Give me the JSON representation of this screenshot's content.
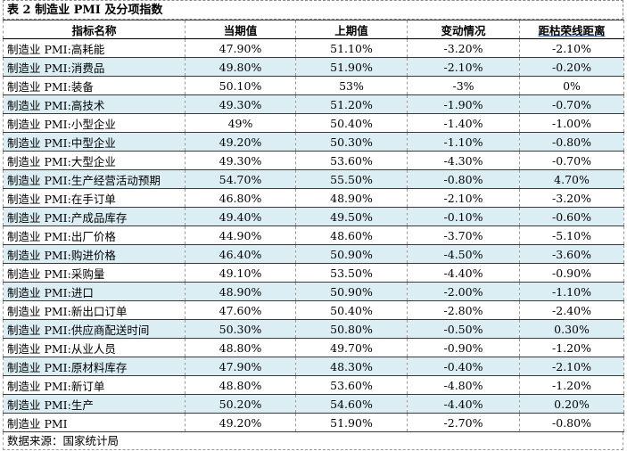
{
  "table": {
    "title": "表 2 制造业 PMI 及分项指数",
    "headers": [
      "指标名称",
      "当期值",
      "上期值",
      "变动情况",
      "距枯荣线距离"
    ],
    "rows": [
      [
        "制造业 PMI:高耗能",
        "47.90%",
        "51.10%",
        "-3.20%",
        "-2.10%"
      ],
      [
        "制造业 PMI:消费品",
        "49.80%",
        "51.90%",
        "-2.10%",
        "-0.20%"
      ],
      [
        "制造业 PMI:装备",
        "50.10%",
        "53%",
        "-3%",
        "0%"
      ],
      [
        "制造业 PMI:高技术",
        "49.30%",
        "51.20%",
        "-1.90%",
        "-0.70%"
      ],
      [
        "制造业 PMI:小型企业",
        "49%",
        "50.40%",
        "-1.40%",
        "-1.00%"
      ],
      [
        "制造业 PMI:中型企业",
        "49.20%",
        "50.30%",
        "-1.10%",
        "-0.80%"
      ],
      [
        "制造业 PMI:大型企业",
        "49.30%",
        "53.60%",
        "-4.30%",
        "-0.70%"
      ],
      [
        "制造业 PMI:生产经营活动预期",
        "54.70%",
        "55.50%",
        "-0.80%",
        "4.70%"
      ],
      [
        "制造业 PMI:在手订单",
        "46.80%",
        "48.90%",
        "-2.10%",
        "-3.20%"
      ],
      [
        "制造业 PMI:产成品库存",
        "49.40%",
        "49.50%",
        "-0.10%",
        "-0.60%"
      ],
      [
        "制造业 PMI:出厂价格",
        "44.90%",
        "48.60%",
        "-3.70%",
        "-5.10%"
      ],
      [
        "制造业 PMI:购进价格",
        "46.40%",
        "50.90%",
        "-4.50%",
        "-3.60%"
      ],
      [
        "制造业 PMI:采购量",
        "49.10%",
        "53.50%",
        "-4.40%",
        "-0.90%"
      ],
      [
        "制造业 PMI:进口",
        "48.90%",
        "50.90%",
        "-2.00%",
        "-1.10%"
      ],
      [
        "制造业 PMI:新出口订单",
        "47.60%",
        "50.40%",
        "-2.80%",
        "-2.40%"
      ],
      [
        "制造业 PMI:供应商配送时间",
        "50.30%",
        "50.80%",
        "-0.50%",
        "0.30%"
      ],
      [
        "制造业 PMI:从业人员",
        "48.80%",
        "49.70%",
        "-0.90%",
        "-1.20%"
      ],
      [
        "制造业 PMI:原材料库存",
        "47.90%",
        "48.30%",
        "-0.40%",
        "-2.10%"
      ],
      [
        "制造业 PMI:新订单",
        "48.80%",
        "53.60%",
        "-4.80%",
        "-1.20%"
      ],
      [
        "制造业 PMI:生产",
        "50.20%",
        "54.60%",
        "-4.40%",
        "0.20%"
      ],
      [
        "制造业 PMI",
        "49.20%",
        "51.90%",
        "-2.70%",
        "-0.80%"
      ]
    ],
    "source": "数据来源：国家统计局"
  },
  "colors": {
    "stripe": "#dbeef4",
    "border": "#3a3a3a"
  }
}
